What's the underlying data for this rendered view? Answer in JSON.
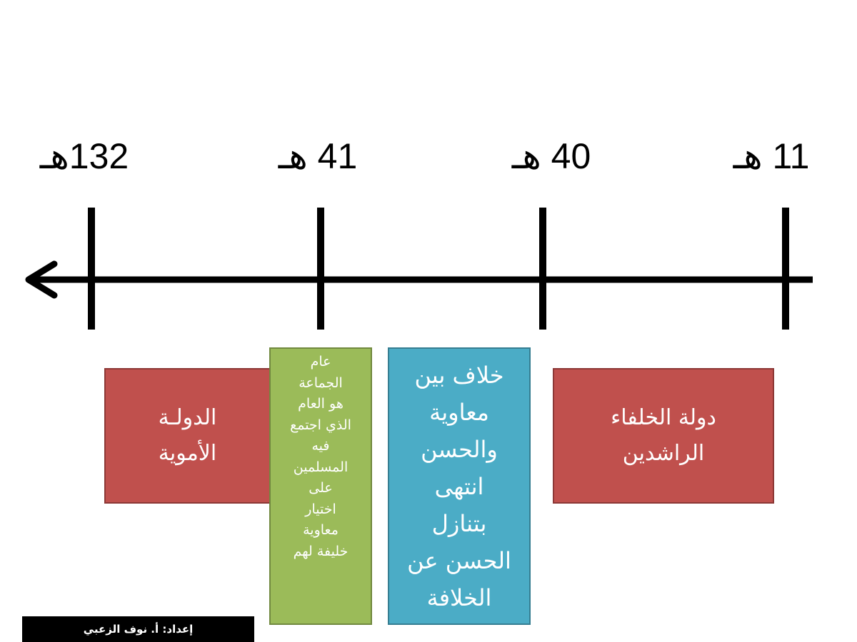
{
  "timeline": {
    "years": [
      "132هـ",
      "41 هـ",
      "40 هـ",
      "11 هـ"
    ],
    "direction": "right-to-left"
  },
  "boxes": {
    "umayyad": {
      "lines": [
        "الدولـة",
        "الأموية"
      ],
      "color": "#c0504d"
    },
    "jamaa": {
      "lines": [
        "عام",
        "الجماعة",
        "هو العام",
        "الذي اجتمع",
        "فيه",
        "المسلمين",
        "على",
        "اختيار",
        "معاوية",
        "خليفة لهم"
      ],
      "color": "#9bbb59"
    },
    "dispute": {
      "lines": [
        "خلاف بين",
        "معاوية",
        "والحسن",
        "انتهى",
        "بتنازل",
        "الحسن عن",
        "الخلافة"
      ],
      "color": "#4bacc6"
    },
    "rashidun": {
      "lines": [
        "دولة الخلفاء",
        "الراشدين"
      ],
      "color": "#c0504d"
    }
  },
  "footer": {
    "credit": "إعداد: أ. نوف الزعبي"
  }
}
